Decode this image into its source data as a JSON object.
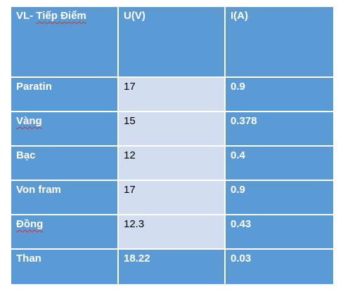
{
  "table": {
    "header": {
      "col1_part1": "VL- ",
      "col1_part2": "Tiếp Điểm",
      "col2": "U(V)",
      "col3": "I(A)"
    },
    "rows": [
      {
        "material": "Paratin",
        "voltage": "17",
        "current": "0.9"
      },
      {
        "material": "Vàng",
        "voltage": "15",
        "current": "0.378"
      },
      {
        "material": "Bạc",
        "voltage": "12",
        "current": "0.4"
      },
      {
        "material": "Von fram",
        "voltage": "17",
        "current": "0.9"
      },
      {
        "material": "Đồng",
        "voltage": "12.3",
        "current": "0.43"
      },
      {
        "material": "Than",
        "voltage": "18.22",
        "current": "0.03"
      }
    ],
    "colors": {
      "header_and_first_column": "#5b9bd5",
      "banded_middle_column": "#d2deef",
      "border": "#ffffff"
    }
  }
}
